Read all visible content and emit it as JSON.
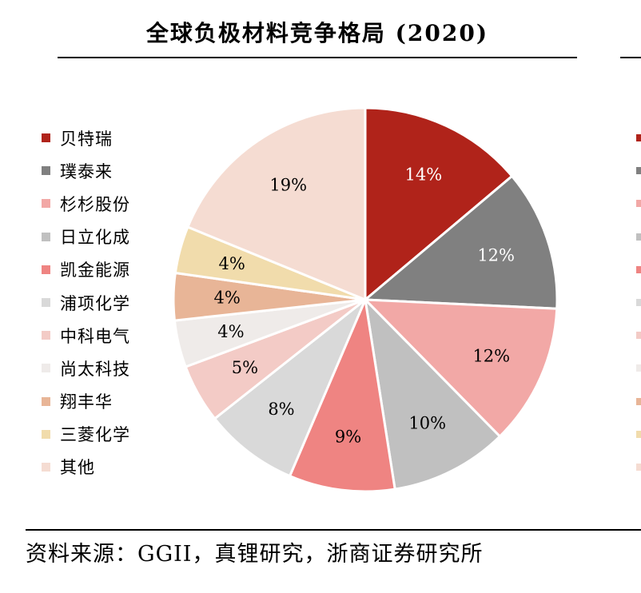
{
  "chart_data": {
    "type": "pie",
    "title": "全球负极材料竞争格局 (2020)",
    "legend_position": "left",
    "categories": [
      "贝特瑞",
      "璞泰来",
      "杉杉股份",
      "日立化成",
      "凯金能源",
      "浦项化学",
      "中科电气",
      "尚太科技",
      "翔丰华",
      "三菱化学",
      "其他"
    ],
    "values": [
      14,
      12,
      12,
      10,
      9,
      8,
      5,
      4,
      4,
      4,
      19
    ],
    "labels": [
      "14%",
      "12%",
      "12%",
      "10%",
      "9%",
      "8%",
      "5%",
      "4%",
      "4%",
      "4%",
      "19%"
    ],
    "colors": [
      "#b0231a",
      "#808080",
      "#f2a8a6",
      "#c0c0c0",
      "#ef8482",
      "#d9d9d9",
      "#f3cbc6",
      "#efebe9",
      "#e8b597",
      "#f1dcac",
      "#f5dcd2"
    ],
    "label_colors": [
      "#ffffff",
      "#ffffff",
      "#000000",
      "#000000",
      "#000000",
      "#000000",
      "#000000",
      "#000000",
      "#000000",
      "#000000",
      "#000000"
    ],
    "right_tick_colors": [
      "#b0231a",
      "#808080",
      "#f2a8a6",
      "#c0c0c0",
      "#ef8482",
      "#d9d9d9",
      "#f3cbc6",
      "#efebe9",
      "#e8b597",
      "#f1dcac",
      "#f5dcd2"
    ]
  },
  "source": "资料来源：GGII，真锂研究，浙商证券研究所"
}
